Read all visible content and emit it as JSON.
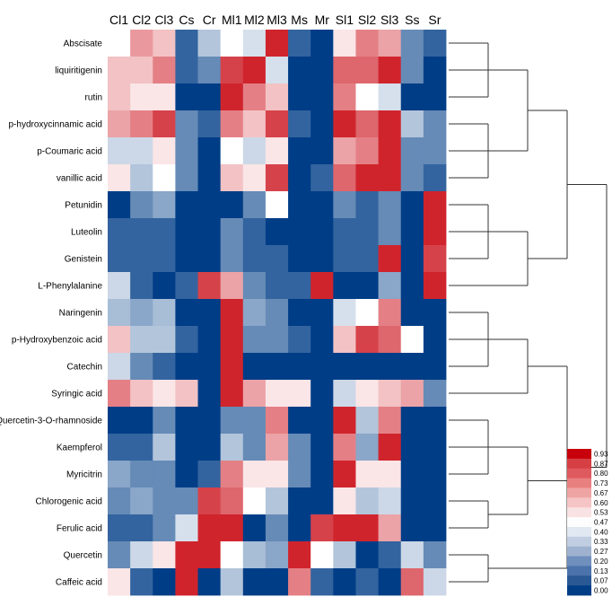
{
  "chart_data": {
    "type": "heatmap",
    "columns": [
      "Cl1",
      "Cl2",
      "Cl3",
      "Cs",
      "Cr",
      "Ml1",
      "Ml2",
      "Ml3",
      "Ms",
      "Mr",
      "Sl1",
      "Sl2",
      "Sl3",
      "Ss",
      "Sr"
    ],
    "rows": [
      "Abscisate",
      "liquiritigenin",
      "rutin",
      "p-hydroxycinnamic acid",
      "p-Coumaric acid",
      "vanillic acid",
      "Petunidin",
      "Luteolin",
      "Genistein",
      "L-Phenylalanine",
      "Naringenin",
      "p-Hydroxybenzoic acid",
      "Catechin",
      "Syringic acid",
      "Quercetin-3-O-rhamnoside",
      "Kaempferol",
      "Myricitrin",
      "Chlorogenic acid",
      "Ferulic acid",
      "Quercetin",
      "Caffeic acid"
    ],
    "values": [
      [
        0.5,
        0.7,
        0.62,
        0.1,
        0.35,
        0.5,
        0.42,
        0.93,
        0.1,
        0.0,
        0.55,
        0.75,
        0.68,
        0.2,
        0.1
      ],
      [
        0.62,
        0.62,
        0.75,
        0.1,
        0.2,
        0.87,
        0.93,
        0.42,
        0.0,
        0.0,
        0.8,
        0.8,
        0.93,
        0.2,
        0.0
      ],
      [
        0.62,
        0.55,
        0.55,
        0.0,
        0.0,
        0.93,
        0.75,
        0.62,
        0.0,
        0.0,
        0.75,
        0.5,
        0.42,
        0.0,
        0.0
      ],
      [
        0.68,
        0.75,
        0.87,
        0.2,
        0.1,
        0.75,
        0.62,
        0.87,
        0.1,
        0.0,
        0.93,
        0.8,
        0.93,
        0.35,
        0.2
      ],
      [
        0.4,
        0.4,
        0.55,
        0.2,
        0.0,
        0.5,
        0.4,
        0.55,
        0.0,
        0.0,
        0.68,
        0.75,
        0.93,
        0.2,
        0.2
      ],
      [
        0.55,
        0.35,
        0.5,
        0.2,
        0.0,
        0.62,
        0.55,
        0.87,
        0.0,
        0.1,
        0.8,
        0.93,
        0.93,
        0.2,
        0.1
      ],
      [
        0.0,
        0.2,
        0.27,
        0.0,
        0.0,
        0.0,
        0.2,
        0.5,
        0.0,
        0.0,
        0.2,
        0.1,
        0.2,
        0.0,
        0.93
      ],
      [
        0.1,
        0.1,
        0.1,
        0.0,
        0.0,
        0.2,
        0.1,
        0.0,
        0.0,
        0.0,
        0.1,
        0.1,
        0.2,
        0.0,
        0.93
      ],
      [
        0.1,
        0.1,
        0.1,
        0.0,
        0.0,
        0.2,
        0.1,
        0.1,
        0.0,
        0.0,
        0.1,
        0.1,
        0.93,
        0.0,
        0.87
      ],
      [
        0.4,
        0.1,
        0.0,
        0.1,
        0.87,
        0.68,
        0.2,
        0.1,
        0.1,
        0.93,
        0.0,
        0.0,
        0.27,
        0.0,
        0.93
      ],
      [
        0.33,
        0.27,
        0.33,
        0.0,
        0.0,
        0.93,
        0.27,
        0.2,
        0.0,
        0.0,
        0.42,
        0.5,
        0.75,
        0.0,
        0.0
      ],
      [
        0.62,
        0.35,
        0.35,
        0.1,
        0.0,
        0.93,
        0.2,
        0.2,
        0.1,
        0.0,
        0.62,
        0.87,
        0.8,
        0.5,
        0.0
      ],
      [
        0.4,
        0.2,
        0.1,
        0.0,
        0.0,
        0.93,
        0.0,
        0.0,
        0.0,
        0.0,
        0.0,
        0.0,
        0.0,
        0.0,
        0.0
      ],
      [
        0.75,
        0.62,
        0.55,
        0.62,
        0.0,
        0.93,
        0.68,
        0.55,
        0.55,
        0.0,
        0.4,
        0.55,
        0.62,
        0.68,
        0.2
      ],
      [
        0.0,
        0.0,
        0.2,
        0.0,
        0.0,
        0.2,
        0.2,
        0.75,
        0.0,
        0.0,
        0.93,
        0.35,
        0.75,
        0.0,
        0.0
      ],
      [
        0.1,
        0.1,
        0.35,
        0.0,
        0.0,
        0.35,
        0.2,
        0.68,
        0.2,
        0.0,
        0.75,
        0.27,
        0.93,
        0.0,
        0.0
      ],
      [
        0.27,
        0.2,
        0.2,
        0.0,
        0.1,
        0.75,
        0.55,
        0.55,
        0.2,
        0.0,
        0.93,
        0.55,
        0.55,
        0.0,
        0.0
      ],
      [
        0.2,
        0.27,
        0.2,
        0.2,
        0.87,
        0.8,
        0.5,
        0.35,
        0.0,
        0.0,
        0.55,
        0.35,
        0.4,
        0.0,
        0.0
      ],
      [
        0.1,
        0.1,
        0.2,
        0.42,
        0.93,
        0.93,
        0.0,
        0.2,
        0.0,
        0.87,
        0.93,
        0.93,
        0.68,
        0.0,
        0.0
      ],
      [
        0.2,
        0.4,
        0.55,
        0.93,
        0.93,
        0.5,
        0.33,
        0.27,
        0.93,
        0.5,
        0.35,
        0.0,
        0.1,
        0.4,
        0.2
      ],
      [
        0.55,
        0.1,
        0.0,
        0.93,
        0.0,
        0.35,
        0.0,
        0.0,
        0.75,
        0.1,
        0.0,
        0.1,
        0.0,
        0.8,
        0.4
      ]
    ],
    "legend_ticks": [
      "0.93",
      "0.87",
      "0.80",
      "0.73",
      "0.67",
      "0.60",
      "0.53",
      "0.47",
      "0.40",
      "0.33",
      "0.27",
      "0.20",
      "0.13",
      "0.07",
      "0.00"
    ],
    "legend_colors": [
      "#c8000b",
      "#d63f44",
      "#df5a5e",
      "#e8807f",
      "#efa4a4",
      "#f5c4c4",
      "#f9e2e3",
      "#fdfdfd",
      "#e2e8f1",
      "#c1cee2",
      "#9eb2d0",
      "#6f8fbd",
      "#4b72ab",
      "#295894",
      "#003d87"
    ],
    "color_scale": {
      "low": "#003d87",
      "mid": "#ffffff",
      "high": "#c8000b",
      "min": 0,
      "max": 1
    }
  }
}
